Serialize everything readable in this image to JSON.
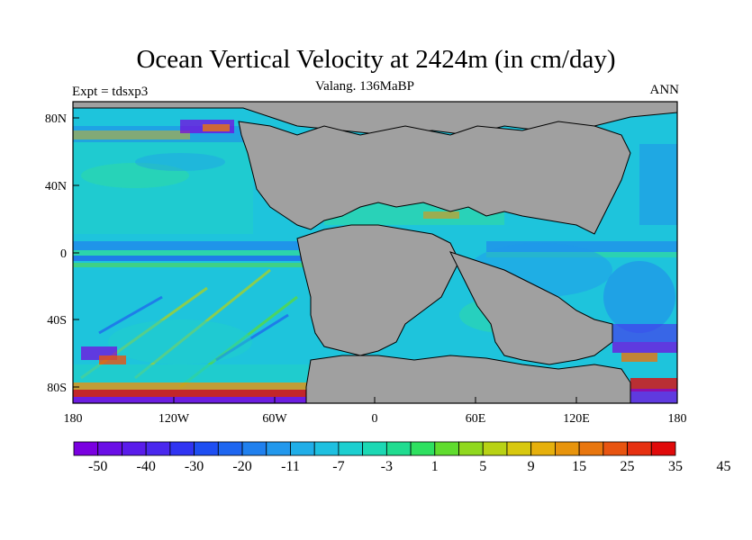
{
  "title": "Ocean Vertical Velocity at 2424m (in cm/day)",
  "subtitle": "Valang. 136MaBP",
  "left_label": "Expt = tdsxp3",
  "right_label": "ANN",
  "x_ticks": [
    "180",
    "120W",
    "60W",
    "0",
    "60E",
    "120E",
    "180"
  ],
  "y_ticks": [
    "80N",
    "40N",
    "0",
    "40S",
    "80S"
  ],
  "colorbar": {
    "colors": [
      "#7a00e0",
      "#6a0ee6",
      "#5a1cea",
      "#4a28ee",
      "#3034f2",
      "#1e4ef2",
      "#1e66f0",
      "#2080ee",
      "#2298ec",
      "#20aee8",
      "#1ec0e0",
      "#1ccfd0",
      "#1cd8b4",
      "#20dc90",
      "#2ee060",
      "#60dc2e",
      "#90d81e",
      "#b8d214",
      "#d8c80e",
      "#e6b00c",
      "#e8940c",
      "#e8760e",
      "#e85410",
      "#e63010",
      "#e00a0a"
    ],
    "labels": [
      "-50",
      "-40",
      "-30",
      "-20",
      "-11",
      "-7",
      "-3",
      "1",
      "5",
      "9",
      "15",
      "25",
      "35",
      "45"
    ]
  }
}
